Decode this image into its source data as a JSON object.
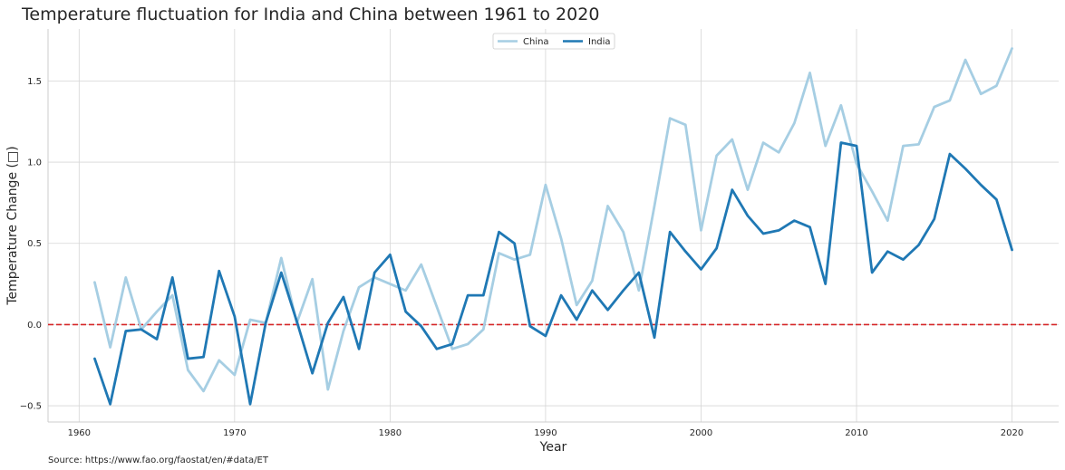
{
  "chart_data": {
    "type": "line",
    "title": "Temperature fluctuation for India and China between 1961 to 2020",
    "xlabel": "Year",
    "ylabel": "Temperature Change (□)",
    "source": "Source: https://www.fao.org/faostat/en/#data/ET",
    "xlim": [
      1958,
      2023
    ],
    "ylim": [
      -0.6,
      1.82
    ],
    "xticks": [
      1960,
      1970,
      1980,
      1990,
      2000,
      2010,
      2020
    ],
    "yticks": [
      -0.5,
      0.0,
      0.5,
      1.0,
      1.5
    ],
    "ytick_labels": [
      "−0.5",
      "0.0",
      "0.5",
      "1.0",
      "1.5"
    ],
    "grid": true,
    "legend": "top-center",
    "reference_line": {
      "y": 0.0,
      "color": "#d62728",
      "style": "dashed"
    },
    "x": [
      1961,
      1962,
      1963,
      1964,
      1965,
      1966,
      1967,
      1968,
      1969,
      1970,
      1971,
      1972,
      1973,
      1974,
      1975,
      1976,
      1977,
      1978,
      1979,
      1980,
      1981,
      1982,
      1983,
      1984,
      1985,
      1986,
      1987,
      1988,
      1989,
      1990,
      1991,
      1992,
      1993,
      1994,
      1995,
      1996,
      1997,
      1998,
      1999,
      2000,
      2001,
      2002,
      2003,
      2004,
      2005,
      2006,
      2007,
      2008,
      2009,
      2010,
      2011,
      2012,
      2013,
      2014,
      2015,
      2016,
      2017,
      2018,
      2019,
      2020
    ],
    "series": [
      {
        "name": "China",
        "color": "#a6cee3",
        "values": [
          0.26,
          -0.14,
          0.29,
          -0.03,
          0.08,
          0.18,
          -0.28,
          -0.41,
          -0.22,
          -0.31,
          0.03,
          0.01,
          0.41,
          0.01,
          0.28,
          -0.4,
          -0.04,
          0.23,
          0.29,
          0.25,
          0.21,
          0.37,
          0.11,
          -0.15,
          -0.12,
          -0.03,
          0.44,
          0.4,
          0.43,
          0.86,
          0.53,
          0.12,
          0.27,
          0.73,
          0.57,
          0.21,
          0.73,
          1.27,
          1.23,
          0.58,
          1.04,
          1.14,
          0.83,
          1.12,
          1.06,
          1.24,
          1.55,
          1.1,
          1.35,
          0.99,
          0.82,
          0.64,
          1.1,
          1.11,
          1.34,
          1.38,
          1.63,
          1.42,
          1.47,
          1.7
        ]
      },
      {
        "name": "India",
        "color": "#1f78b4",
        "values": [
          -0.21,
          -0.49,
          -0.04,
          -0.03,
          -0.09,
          0.29,
          -0.21,
          -0.2,
          0.33,
          0.05,
          -0.49,
          0.01,
          0.32,
          0.02,
          -0.3,
          0.01,
          0.17,
          -0.15,
          0.32,
          0.43,
          0.08,
          -0.01,
          -0.15,
          -0.12,
          0.18,
          0.18,
          0.57,
          0.5,
          -0.01,
          -0.07,
          0.18,
          0.03,
          0.21,
          0.09,
          0.21,
          0.32,
          -0.08,
          0.57,
          0.45,
          0.34,
          0.47,
          0.83,
          0.67,
          0.56,
          0.58,
          0.64,
          0.6,
          0.25,
          1.12,
          1.1,
          0.32,
          0.45,
          0.4,
          0.49,
          0.65,
          1.05,
          0.96,
          0.86,
          0.77,
          0.46
        ]
      }
    ]
  }
}
